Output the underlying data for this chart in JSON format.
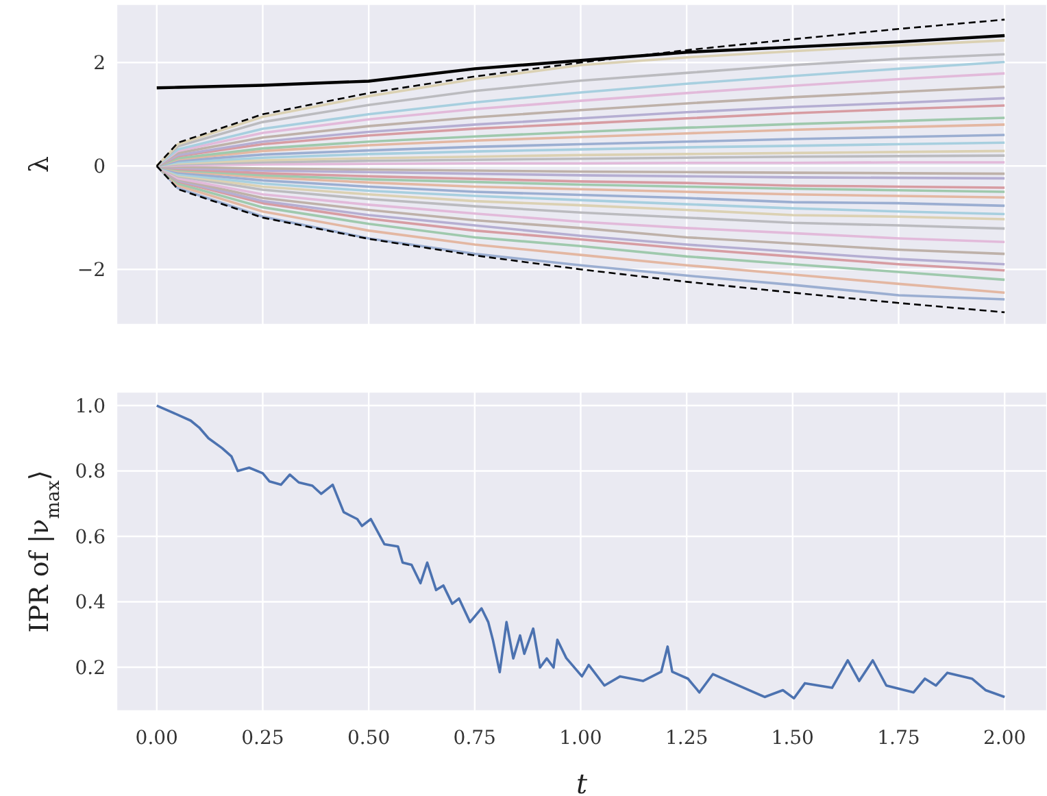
{
  "chart_data": [
    {
      "type": "line",
      "ylabel": "λ",
      "tick_labels": "y",
      "grid": true,
      "xlim": [
        -0.095,
        2.1
      ],
      "ylim": [
        -3.07,
        3.13
      ],
      "xticks": [
        0,
        0.25,
        0.5,
        0.75,
        1,
        1.25,
        1.5,
        1.75,
        2
      ],
      "yticks": [
        {
          "value": -2,
          "label": "−2"
        },
        0,
        2
      ],
      "x": [
        0,
        0.05,
        0.25,
        0.5,
        0.75,
        1,
        1.25,
        1.5,
        1.75,
        2
      ],
      "series": [
        {
          "color": "#9baed1",
          "values": [
            0,
            -0.43,
            -0.98,
            -1.4,
            -1.7,
            -1.92,
            -2.12,
            -2.3,
            -2.5,
            -2.58
          ]
        },
        {
          "color": "#e3b7a2",
          "values": [
            0,
            -0.38,
            -0.88,
            -1.25,
            -1.52,
            -1.72,
            -1.92,
            -2.1,
            -2.28,
            -2.45
          ]
        },
        {
          "color": "#9fc9ad",
          "values": [
            0,
            -0.34,
            -0.8,
            -1.12,
            -1.38,
            -1.55,
            -1.75,
            -1.9,
            -2.05,
            -2.2
          ]
        },
        {
          "color": "#d79ca2",
          "values": [
            0,
            -0.3,
            -0.72,
            -1.02,
            -1.25,
            -1.42,
            -1.6,
            -1.75,
            -1.9,
            -2.02
          ]
        },
        {
          "color": "#b5aed2",
          "values": [
            0,
            -0.28,
            -0.68,
            -0.95,
            -1.15,
            -1.35,
            -1.52,
            -1.66,
            -1.8,
            -1.9
          ]
        },
        {
          "color": "#beb1a9",
          "values": [
            0,
            -0.26,
            -0.62,
            -0.85,
            -1.05,
            -1.2,
            -1.38,
            -1.5,
            -1.62,
            -1.7
          ]
        },
        {
          "color": "#e2bada",
          "values": [
            0,
            -0.24,
            -0.55,
            -0.75,
            -0.92,
            -1.08,
            -1.2,
            -1.3,
            -1.4,
            -1.47
          ]
        },
        {
          "color": "#bbbbbf",
          "values": [
            0,
            -0.2,
            -0.46,
            -0.64,
            -0.78,
            -0.9,
            -1.0,
            -1.1,
            -1.15,
            -1.21
          ]
        },
        {
          "color": "#dbd1b3",
          "values": [
            0,
            -0.18,
            -0.4,
            -0.55,
            -0.68,
            -0.76,
            -0.85,
            -0.95,
            -0.98,
            -1.03
          ]
        },
        {
          "color": "#a7cfdf",
          "values": [
            0,
            -0.16,
            -0.34,
            -0.48,
            -0.58,
            -0.66,
            -0.74,
            -0.82,
            -0.88,
            -0.93
          ]
        },
        {
          "color": "#9baed1",
          "values": [
            0,
            -0.13,
            -0.28,
            -0.4,
            -0.5,
            -0.56,
            -0.62,
            -0.7,
            -0.72,
            -0.77
          ]
        },
        {
          "color": "#e3b7a2",
          "values": [
            0,
            -0.1,
            -0.22,
            -0.32,
            -0.4,
            -0.45,
            -0.5,
            -0.55,
            -0.58,
            -0.61
          ]
        },
        {
          "color": "#9fc9ad",
          "values": [
            0,
            -0.08,
            -0.18,
            -0.26,
            -0.31,
            -0.36,
            -0.4,
            -0.44,
            -0.47,
            -0.5
          ]
        },
        {
          "color": "#d79ca2",
          "values": [
            0,
            -0.06,
            -0.14,
            -0.2,
            -0.25,
            -0.3,
            -0.33,
            -0.38,
            -0.4,
            -0.42
          ]
        },
        {
          "color": "#b5aed2",
          "values": [
            0,
            -0.04,
            -0.09,
            -0.12,
            -0.15,
            -0.18,
            -0.2,
            -0.22,
            -0.23,
            -0.24
          ]
        },
        {
          "color": "#beb1a9",
          "values": [
            0,
            -0.02,
            -0.05,
            -0.07,
            -0.09,
            -0.11,
            -0.12,
            -0.13,
            -0.14,
            -0.15
          ]
        },
        {
          "color": "#e2bada",
          "values": [
            0,
            0.01,
            0.03,
            0.04,
            0.05,
            0.05,
            0.06,
            0.06,
            0.07,
            0.07
          ]
        },
        {
          "color": "#bbbbbf",
          "values": [
            0,
            0.03,
            0.07,
            0.1,
            0.12,
            0.14,
            0.16,
            0.18,
            0.19,
            0.2
          ]
        },
        {
          "color": "#dbd1b3",
          "values": [
            0,
            0.05,
            0.11,
            0.15,
            0.18,
            0.21,
            0.23,
            0.25,
            0.27,
            0.29
          ]
        },
        {
          "color": "#a7cfdf",
          "values": [
            0,
            0.07,
            0.16,
            0.23,
            0.28,
            0.32,
            0.36,
            0.39,
            0.42,
            0.45
          ]
        },
        {
          "color": "#9baed1",
          "values": [
            0,
            0.1,
            0.22,
            0.3,
            0.37,
            0.42,
            0.47,
            0.52,
            0.56,
            0.6
          ]
        },
        {
          "color": "#e3b7a2",
          "values": [
            0,
            0.13,
            0.29,
            0.4,
            0.49,
            0.56,
            0.63,
            0.7,
            0.75,
            0.8
          ]
        },
        {
          "color": "#9fc9ad",
          "values": [
            0,
            0.15,
            0.34,
            0.47,
            0.57,
            0.66,
            0.74,
            0.81,
            0.87,
            0.93
          ]
        },
        {
          "color": "#d79ca2",
          "values": [
            0,
            0.19,
            0.42,
            0.59,
            0.72,
            0.82,
            0.92,
            1.02,
            1.1,
            1.17
          ]
        },
        {
          "color": "#b5aed2",
          "values": [
            0,
            0.21,
            0.47,
            0.66,
            0.8,
            0.92,
            1.04,
            1.14,
            1.22,
            1.31
          ]
        },
        {
          "color": "#beb1a9",
          "values": [
            0,
            0.25,
            0.55,
            0.77,
            0.94,
            1.08,
            1.21,
            1.33,
            1.43,
            1.53
          ]
        },
        {
          "color": "#e2bada",
          "values": [
            0,
            0.29,
            0.64,
            0.9,
            1.1,
            1.26,
            1.41,
            1.55,
            1.68,
            1.79
          ]
        },
        {
          "color": "#a7cfdf",
          "values": [
            0,
            0.32,
            0.72,
            1.0,
            1.23,
            1.42,
            1.59,
            1.74,
            1.88,
            2.01
          ]
        },
        {
          "color": "#bbbbbf",
          "values": [
            0,
            0.38,
            0.85,
            1.18,
            1.45,
            1.65,
            1.8,
            1.95,
            2.07,
            2.16
          ]
        },
        {
          "color": "#dbd1b3",
          "values": [
            0,
            0.42,
            0.95,
            1.35,
            1.68,
            1.95,
            2.1,
            2.22,
            2.33,
            2.43
          ]
        },
        {
          "color": "#000000",
          "values": [
            1.51,
            1.52,
            1.56,
            1.64,
            1.88,
            2.04,
            2.2,
            2.3,
            2.4,
            2.52
          ]
        },
        {
          "color": "#000000",
          "line_style": "dashed",
          "values": [
            0,
            0.45,
            1.0,
            1.41,
            1.73,
            2.0,
            2.24,
            2.45,
            2.65,
            2.83
          ]
        },
        {
          "color": "#000000",
          "line_style": "dashed",
          "values": [
            0,
            -0.45,
            -1.0,
            -1.41,
            -1.73,
            -2.0,
            -2.24,
            -2.45,
            -2.65,
            -2.83
          ]
        }
      ]
    },
    {
      "type": "line",
      "xlabel": "t",
      "ylabel": "IPR of |ν$_{max}$⟩",
      "grid": true,
      "xlim": [
        -0.095,
        2.1
      ],
      "ylim": [
        0.066,
        1.042
      ],
      "xticks": [
        {
          "value": 0,
          "label": "0.00"
        },
        {
          "value": 0.25,
          "label": "0.25"
        },
        {
          "value": 0.5,
          "label": "0.50"
        },
        {
          "value": 0.75,
          "label": "0.75"
        },
        {
          "value": 1,
          "label": "1.00"
        },
        {
          "value": 1.25,
          "label": "1.25"
        },
        {
          "value": 1.5,
          "label": "1.50"
        },
        {
          "value": 1.75,
          "label": "1.75"
        },
        {
          "value": 2,
          "label": "2.00"
        }
      ],
      "yticks": [
        {
          "value": 0.2,
          "label": "0.2"
        },
        {
          "value": 0.4,
          "label": "0.4"
        },
        {
          "value": 0.6,
          "label": "0.6"
        },
        {
          "value": 0.8,
          "label": "0.8"
        },
        {
          "value": 1,
          "label": "1.0"
        }
      ],
      "x": [
        0,
        0.037,
        0.08,
        0.1,
        0.122,
        0.154,
        0.176,
        0.191,
        0.218,
        0.25,
        0.266,
        0.293,
        0.314,
        0.335,
        0.367,
        0.388,
        0.415,
        0.441,
        0.473,
        0.484,
        0.505,
        0.537,
        0.569,
        0.58,
        0.601,
        0.622,
        0.638,
        0.659,
        0.676,
        0.697,
        0.713,
        0.739,
        0.766,
        0.782,
        0.793,
        0.809,
        0.825,
        0.841,
        0.857,
        0.867,
        0.888,
        0.904,
        0.92,
        0.936,
        0.945,
        0.966,
        1.003,
        1.019,
        1.056,
        1.093,
        1.147,
        1.19,
        1.205,
        1.216,
        1.253,
        1.28,
        1.312,
        1.36,
        1.434,
        1.477,
        1.503,
        1.529,
        1.593,
        1.63,
        1.657,
        1.689,
        1.721,
        1.785,
        1.812,
        1.838,
        1.865,
        1.923,
        1.955,
        2.0
      ],
      "series": [
        {
          "color": "#4c72b0",
          "values": [
            1.0,
            0.979,
            0.954,
            0.933,
            0.9,
            0.87,
            0.845,
            0.8,
            0.81,
            0.793,
            0.768,
            0.758,
            0.789,
            0.765,
            0.755,
            0.73,
            0.758,
            0.674,
            0.653,
            0.632,
            0.653,
            0.576,
            0.569,
            0.52,
            0.513,
            0.457,
            0.52,
            0.436,
            0.45,
            0.394,
            0.41,
            0.338,
            0.38,
            0.338,
            0.283,
            0.185,
            0.338,
            0.227,
            0.297,
            0.241,
            0.318,
            0.199,
            0.227,
            0.199,
            0.284,
            0.228,
            0.172,
            0.207,
            0.144,
            0.172,
            0.158,
            0.186,
            0.263,
            0.186,
            0.165,
            0.123,
            0.179,
            0.151,
            0.109,
            0.13,
            0.105,
            0.151,
            0.137,
            0.221,
            0.158,
            0.221,
            0.144,
            0.123,
            0.165,
            0.144,
            0.183,
            0.165,
            0.13,
            0.109
          ]
        }
      ]
    }
  ]
}
